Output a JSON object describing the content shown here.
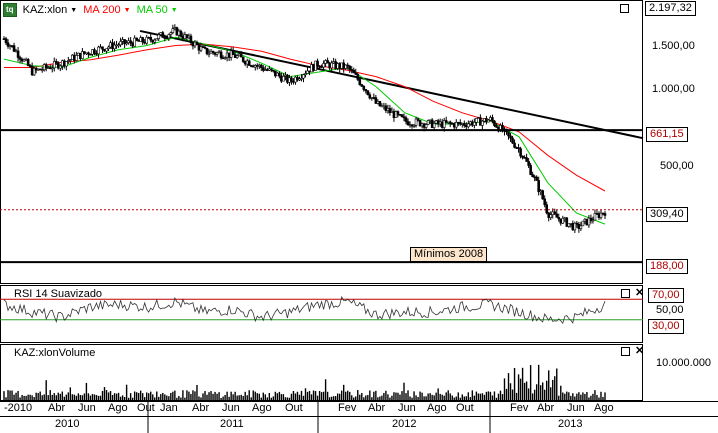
{
  "legend": {
    "ticker": "KAZ:xlon",
    "ma200": "MA 200",
    "ma50": "MA 50",
    "logo": "tq",
    "colors": {
      "ma200": "#ff0000",
      "ma50": "#00cc00",
      "price": "#000000"
    }
  },
  "price_axis": {
    "ticks": [
      "1.500,00",
      "1.000,00",
      "500,00"
    ],
    "top_value": "2.197,32",
    "level_661": "661,15",
    "level_309": "309,40",
    "level_188": "188,00",
    "annotation": "Mínimos 2008"
  },
  "rsi_panel": {
    "title": "RSI 14 Suavizado",
    "ticks": {
      "upper": "70,00",
      "mid": "50,00",
      "lower": "30,00"
    }
  },
  "volume_panel": {
    "title": "KAZ:xlonVolume",
    "tick": "10.000.000"
  },
  "time_axis": {
    "months": [
      "-2010",
      "Abr",
      "Jun",
      "Ago",
      "Out",
      "Jan",
      "Abr",
      "Jun",
      "Ago",
      "Out",
      "Fev",
      "Abr",
      "Jun",
      "Ago",
      "Out",
      "Fev",
      "Abr",
      "Jun",
      "Ago"
    ],
    "years": [
      "2010",
      "2011",
      "2012",
      "2013"
    ]
  },
  "chart_data": {
    "type": "candlestick",
    "title": "KAZ:xlon",
    "log_scale": true,
    "x_dates": [
      "2010-02",
      "2010-04",
      "2010-06",
      "2010-08",
      "2010-10",
      "2010-12",
      "2011-02",
      "2011-04",
      "2011-06",
      "2011-08",
      "2011-10",
      "2011-12",
      "2012-02",
      "2012-04",
      "2012-06",
      "2012-08",
      "2012-10",
      "2012-12",
      "2013-02",
      "2013-04",
      "2013-06",
      "2013-08"
    ],
    "series": [
      {
        "name": "KAZ:xlon",
        "values": [
          1580,
          1150,
          1250,
          1400,
          1500,
          1550,
          1700,
          1400,
          1350,
          1200,
          1050,
          1250,
          1200,
          850,
          720,
          700,
          700,
          730,
          550,
          300,
          260,
          305
        ]
      },
      {
        "name": "MA 200",
        "values": [
          1200,
          1200,
          1260,
          1290,
          1350,
          1420,
          1480,
          1500,
          1460,
          1400,
          1300,
          1220,
          1170,
          1100,
          1000,
          870,
          780,
          720,
          650,
          520,
          430,
          370
        ]
      },
      {
        "name": "MA 50",
        "values": [
          1300,
          1220,
          1200,
          1320,
          1420,
          1480,
          1600,
          1500,
          1400,
          1250,
          1100,
          1150,
          1200,
          1000,
          780,
          700,
          700,
          720,
          620,
          400,
          300,
          270
        ]
      }
    ],
    "levels": [
      661.15,
      309.4,
      188.0
    ],
    "rsi": {
      "name": "RSI 14 Suavizado",
      "values": [
        60,
        45,
        35,
        55,
        60,
        55,
        65,
        45,
        50,
        35,
        45,
        60,
        65,
        40,
        45,
        45,
        55,
        60,
        45,
        30,
        35,
        60
      ],
      "bands": [
        70,
        30
      ]
    },
    "volume": {
      "name": "KAZ:xlonVolume",
      "max": 10000000
    }
  }
}
